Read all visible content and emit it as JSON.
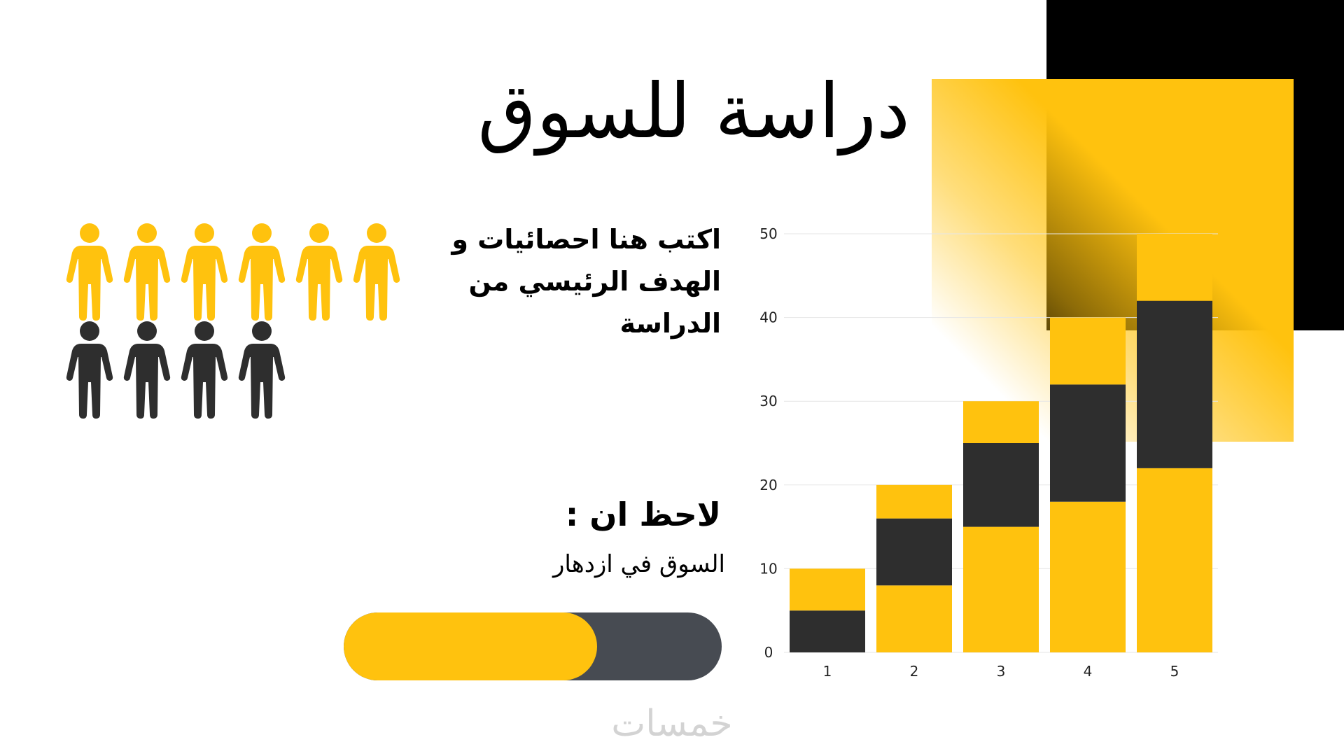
{
  "colors": {
    "accent": "#FFC20E",
    "dark": "#2E2E2E",
    "track": "#474B52",
    "background": "#FFFFFF",
    "grid": "#E6E6E6",
    "watermark": "#D3D3D3"
  },
  "title": "دراسة للسوق",
  "stats_text": "اكتب هنا احصائيات و الهدف الرئيسي من الدراسة",
  "note": {
    "heading": "لاحظ ان :",
    "body": "السوق في ازدهار"
  },
  "progress": {
    "value": 0.67
  },
  "people": {
    "icon": "person-icon",
    "rows": [
      [
        "accent",
        "accent",
        "accent",
        "accent",
        "accent",
        "accent"
      ],
      [
        "dark",
        "dark",
        "dark",
        "dark"
      ]
    ]
  },
  "watermark": "خمسات",
  "chart_data": {
    "type": "bar",
    "stacked": true,
    "categories": [
      "1",
      "2",
      "3",
      "4",
      "5"
    ],
    "series": [
      {
        "color": "#2E2E2E",
        "values": [
          5,
          8,
          15,
          18,
          22
        ]
      },
      {
        "color": "#FFC20E",
        "values": [
          5,
          8,
          10,
          14,
          20
        ]
      },
      {
        "color": "#2E2E2E",
        "values": [
          0,
          4,
          5,
          8,
          8
        ]
      }
    ],
    "segment_colors": [
      [
        "#2E2E2E",
        "#FFC20E",
        "#FFC20E"
      ],
      [
        "#FFC20E",
        "#2E2E2E",
        "#FFC20E"
      ],
      [
        "#FFC20E",
        "#2E2E2E",
        "#FFC20E"
      ],
      [
        "#FFC20E",
        "#2E2E2E",
        "#FFC20E"
      ],
      [
        "#FFC20E",
        "#2E2E2E",
        "#FFC20E"
      ]
    ],
    "segments": [
      [
        5,
        5,
        0
      ],
      [
        8,
        8,
        4
      ],
      [
        15,
        10,
        5
      ],
      [
        18,
        14,
        8
      ],
      [
        22,
        20,
        8
      ]
    ],
    "yticks": [
      0,
      10,
      20,
      30,
      40,
      50
    ],
    "ylim": [
      0,
      50
    ],
    "grid": true,
    "legend": "none"
  }
}
